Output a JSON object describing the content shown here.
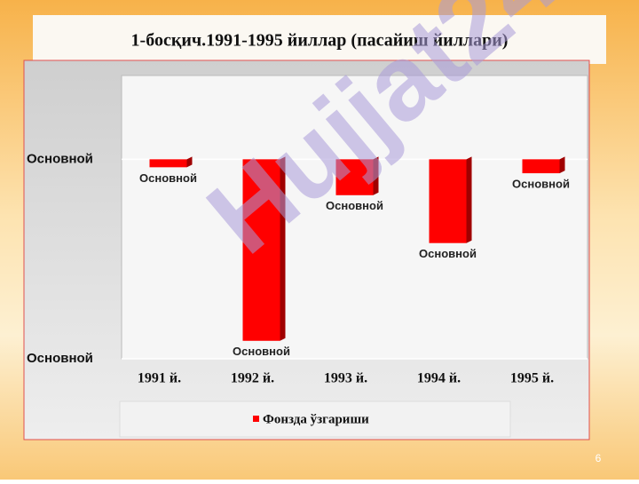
{
  "chart_data": {
    "type": "bar",
    "title": "1-босқич.1991-1995 йиллар (пасайиш йиллари)",
    "categories": [
      "1991 й.",
      "1992 й.",
      "1993 й.",
      "1994 й.",
      "1995 й."
    ],
    "series": [
      {
        "name": "Фонзда ўзгариши",
        "color": "#ff0000",
        "values": [
          -4,
          -91,
          -18,
          -42,
          -7
        ],
        "value_labels": [
          "Основной",
          "Основной",
          "Основной",
          "Основной",
          "Основной"
        ]
      }
    ],
    "ylim": [
      -100,
      42
    ],
    "yticks": [
      {
        "value": 0,
        "label": "Основной"
      },
      {
        "value": -100,
        "label": "Основной"
      }
    ],
    "grid": true
  },
  "watermark": "Hujjat24",
  "page_number": "6"
}
